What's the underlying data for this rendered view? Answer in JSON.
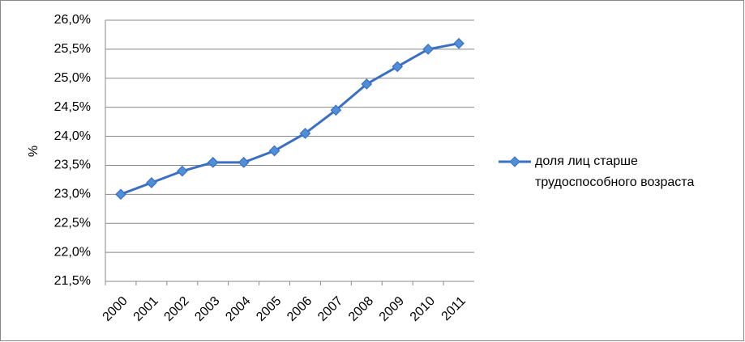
{
  "chart_data": {
    "type": "line",
    "y_label": "%",
    "categories": [
      "2000",
      "2001",
      "2002",
      "2003",
      "2004",
      "2005",
      "2006",
      "2007",
      "2008",
      "2009",
      "2010",
      "2011"
    ],
    "series": [
      {
        "name": "доля лиц старше трудоспособного возраста",
        "color": "#3a6fc4",
        "marker_color": "#4f8fd8",
        "values": [
          23.0,
          23.2,
          23.4,
          23.55,
          23.55,
          23.75,
          24.05,
          24.45,
          24.9,
          25.2,
          25.5,
          25.6
        ]
      }
    ],
    "ylim": [
      21.5,
      26.0
    ],
    "yticks": [
      {
        "value": 21.5,
        "label": "21,5%"
      },
      {
        "value": 22.0,
        "label": "22,0%"
      },
      {
        "value": 22.5,
        "label": "22,5%"
      },
      {
        "value": 23.0,
        "label": "23,0%"
      },
      {
        "value": 23.5,
        "label": "23,5%"
      },
      {
        "value": 24.0,
        "label": "24,0%"
      },
      {
        "value": 24.5,
        "label": "24,5%"
      },
      {
        "value": 25.0,
        "label": "25,0%"
      },
      {
        "value": 25.5,
        "label": "25,5%"
      },
      {
        "value": 26.0,
        "label": "26,0%"
      }
    ],
    "grid": true,
    "legend": "right"
  }
}
